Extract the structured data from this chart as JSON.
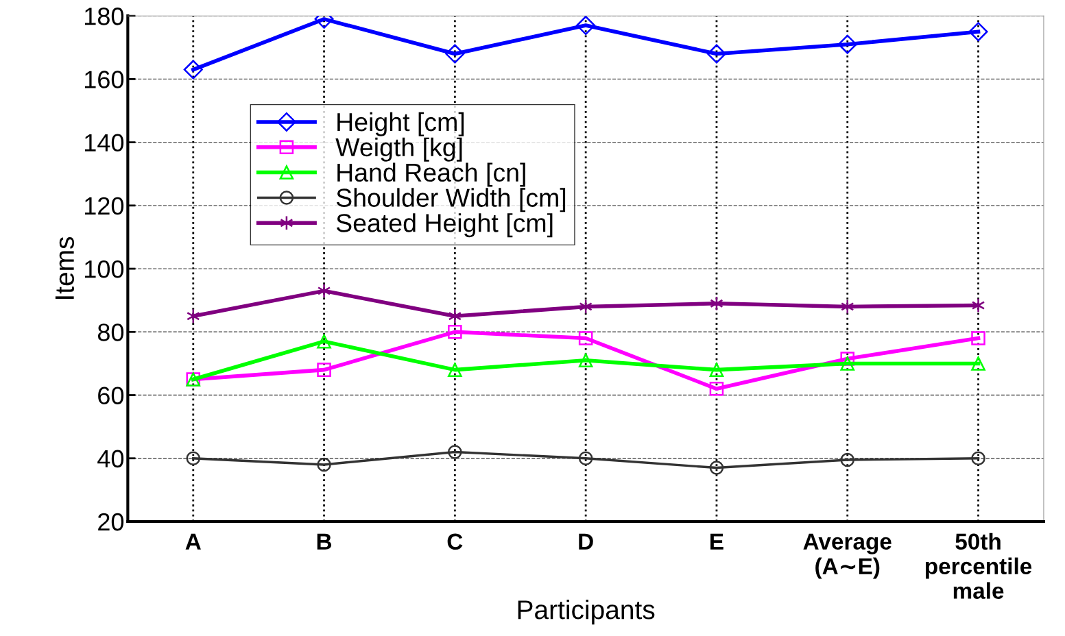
{
  "chart_data": {
    "type": "line",
    "xlabel": "Participants",
    "ylabel": "Items",
    "categories": [
      "A",
      "B",
      "C",
      "D",
      "E",
      "Average\n(A∼E)",
      "50th\npercentile\nmale"
    ],
    "series": [
      {
        "name": "Height [cm]",
        "color": "#0000ff",
        "marker": "diamond",
        "values": [
          163,
          179,
          168,
          177,
          168,
          171,
          175
        ]
      },
      {
        "name": "Weigth [kg]",
        "color": "#ff00ff",
        "marker": "square",
        "values": [
          65,
          68,
          80,
          78,
          62,
          71.5,
          78
        ]
      },
      {
        "name": "Hand Reach [cn]",
        "color": "#00ff00",
        "marker": "triangle",
        "values": [
          65,
          77,
          68,
          71,
          68,
          70,
          70
        ]
      },
      {
        "name": "Shoulder Width [cm]",
        "color": "#333333",
        "marker": "circle",
        "values": [
          40,
          38,
          42,
          40,
          37,
          39.5,
          40
        ]
      },
      {
        "name": "Seated Height [cm]",
        "color": "#800080",
        "marker": "cross",
        "values": [
          85,
          93,
          85,
          88,
          89,
          88,
          88.4
        ]
      }
    ],
    "ylim": [
      20,
      180
    ],
    "yticks": [
      20,
      40,
      60,
      80,
      100,
      120,
      140,
      160,
      180
    ],
    "grid": true,
    "legend": "top left",
    "line_style": "solid"
  }
}
